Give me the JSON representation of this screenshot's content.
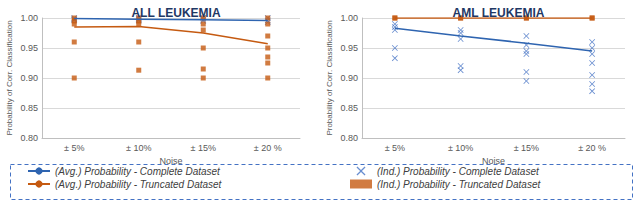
{
  "chart_data": [
    {
      "type": "line",
      "title": "ALL LEUKEMIA",
      "x_label": "Noise",
      "y_label": "Probability of Corr. Classification",
      "categories": [
        "± 5%",
        "± 10%",
        "± 15%",
        "± 20 %"
      ],
      "ylim": [
        0.8,
        1.0
      ],
      "yticks": [
        {
          "value": 0.8,
          "label": "0.80"
        },
        {
          "value": 0.85,
          "label": "0.85"
        },
        {
          "value": 0.9,
          "label": "0.90"
        },
        {
          "value": 0.95,
          "label": "0.95"
        },
        {
          "value": 1.0,
          "label": "1.00"
        }
      ],
      "grid": true,
      "legend": "bottom",
      "series": [
        {
          "name": "(Avg.) Probability - Complete Dataset",
          "type": "line",
          "line_style": "solid",
          "color": "#2e64b0",
          "values": [
            0.999,
            0.998,
            0.997,
            0.996
          ]
        },
        {
          "name": "(Ind.) Probability - Complete Dataset",
          "type": "scatter",
          "marker": "x",
          "color": "#4472c4",
          "values": [
            [
              1.0,
              0.998,
              0.997
            ],
            [
              1.0,
              0.998,
              0.996
            ],
            [
              1.0,
              0.997,
              0.995
            ],
            [
              1.0,
              0.996,
              0.993
            ]
          ]
        },
        {
          "name": "(Avg.) Probability - Truncated Dataset",
          "type": "line",
          "line_style": "solid",
          "color": "#c55a11",
          "values": [
            0.985,
            0.986,
            0.975,
            0.957
          ]
        },
        {
          "name": "(Ind.) Probability - Truncated Dataset",
          "type": "scatter",
          "marker": "square",
          "color": "#c55a11",
          "values": [
            [
              1.0,
              0.995,
              0.99,
              0.96,
              0.9
            ],
            [
              1.0,
              0.995,
              0.99,
              0.96,
              0.913
            ],
            [
              1.0,
              0.99,
              0.98,
              0.95,
              0.915,
              0.9
            ],
            [
              1.0,
              0.99,
              0.97,
              0.95,
              0.935,
              0.925,
              0.9
            ]
          ]
        }
      ]
    },
    {
      "type": "line",
      "title": "AML LEUKEMIA",
      "x_label": "Noise",
      "y_label": "Probability of Corr. Classification",
      "categories": [
        "± 5%",
        "± 10%",
        "± 15%",
        "± 20 %"
      ],
      "ylim": [
        0.8,
        1.0
      ],
      "yticks": [
        {
          "value": 0.8,
          "label": "0.80"
        },
        {
          "value": 0.85,
          "label": "0.85"
        },
        {
          "value": 0.9,
          "label": "0.90"
        },
        {
          "value": 0.95,
          "label": "0.95"
        },
        {
          "value": 1.0,
          "label": "1.00"
        }
      ],
      "grid": true,
      "legend": "bottom",
      "series": [
        {
          "name": "(Avg.) Probability - Complete Dataset",
          "type": "line",
          "line_style": "solid",
          "color": "#2e64b0",
          "values": [
            0.983,
            0.97,
            0.958,
            0.945
          ]
        },
        {
          "name": "(Ind.) Probability - Complete Dataset",
          "type": "scatter",
          "marker": "x",
          "color": "#4472c4",
          "values": [
            [
              0.99,
              0.985,
              0.98,
              0.95,
              0.933
            ],
            [
              0.98,
              0.975,
              0.965,
              0.92,
              0.913
            ],
            [
              0.97,
              0.955,
              0.945,
              0.94,
              0.91,
              0.895
            ],
            [
              0.96,
              0.95,
              0.94,
              0.925,
              0.905,
              0.89,
              0.878
            ]
          ]
        },
        {
          "name": "(Avg.) Probability - Truncated Dataset",
          "type": "line",
          "line_style": "solid",
          "color": "#c55a11",
          "values": [
            1.0,
            1.0,
            1.0,
            1.0
          ]
        },
        {
          "name": "(Ind.) Probability - Truncated Dataset",
          "type": "scatter",
          "marker": "square",
          "color": "#c55a11",
          "values": [
            [
              1.0,
              1.0
            ],
            [
              1.0,
              1.0
            ],
            [
              1.0,
              1.0
            ],
            [
              1.0,
              1.0
            ]
          ]
        }
      ]
    }
  ]
}
